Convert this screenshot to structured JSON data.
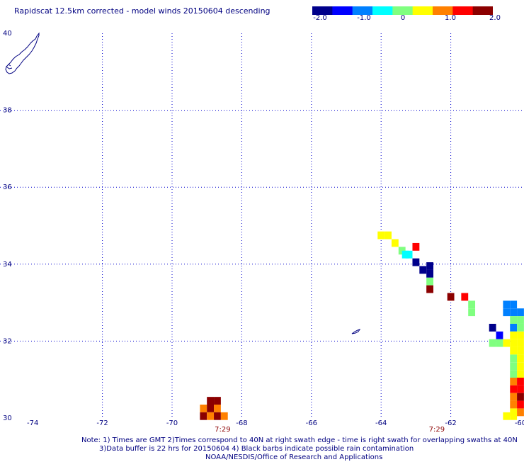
{
  "title": "Rapidscat 12.5km corrected - model winds 20150604 descending",
  "colorbar": {
    "colors": [
      "#00008b",
      "#0000ff",
      "#0080ff",
      "#00ffff",
      "#80ff80",
      "#ffff00",
      "#ff8000",
      "#ff0000",
      "#8b0000"
    ],
    "ticks": [
      "-2.0",
      "-1.0",
      "0",
      "1.0",
      "2.0"
    ]
  },
  "map": {
    "lon_range": [
      -74,
      -60
    ],
    "lat_range": [
      30,
      40
    ],
    "lon_labels": [
      "-74",
      "-72",
      "-70",
      "-68",
      "-66",
      "-64",
      "-62",
      "-60"
    ],
    "lat_labels": [
      "40",
      "38",
      "36",
      "34",
      "32",
      "30"
    ],
    "grid": true,
    "grid_color": "#0000cd",
    "coast_color": "#000080"
  },
  "time_labels": [
    {
      "text": "7:29",
      "lon": -68.55
    },
    {
      "text": "7:29",
      "lon": -62.4
    }
  ],
  "chart_data": {
    "type": "heatmap",
    "variable": "wind speed difference (scatterometer - model)",
    "cell_size_deg": 0.2,
    "value_range": [
      -2.0,
      2.0
    ],
    "cells": [
      [
        -68.9,
        30.45,
        1.6
      ],
      [
        -68.7,
        30.45,
        1.6
      ],
      [
        -69.1,
        30.25,
        1.1
      ],
      [
        -68.9,
        30.25,
        1.6
      ],
      [
        -68.7,
        30.25,
        1.1
      ],
      [
        -69.1,
        30.05,
        1.6
      ],
      [
        -68.9,
        30.05,
        1.1
      ],
      [
        -68.7,
        30.05,
        1.6
      ],
      [
        -68.5,
        30.05,
        1.1
      ],
      [
        -64.0,
        34.75,
        0.6
      ],
      [
        -63.8,
        34.75,
        0.5
      ],
      [
        -63.6,
        34.55,
        0.3
      ],
      [
        -63.4,
        34.35,
        0.0
      ],
      [
        -63.0,
        34.45,
        1.2
      ],
      [
        -63.3,
        34.25,
        -0.4
      ],
      [
        -63.2,
        34.25,
        -0.4
      ],
      [
        -63.0,
        34.05,
        -1.8
      ],
      [
        -62.8,
        33.85,
        -1.8
      ],
      [
        -62.6,
        33.95,
        -1.8
      ],
      [
        -62.6,
        33.75,
        -1.9
      ],
      [
        -62.6,
        33.55,
        -0.1
      ],
      [
        -62.6,
        33.35,
        2.0
      ],
      [
        -62.0,
        33.15,
        2.0
      ],
      [
        -61.6,
        33.15,
        1.2
      ],
      [
        -61.4,
        32.95,
        0.1
      ],
      [
        -61.4,
        32.75,
        0.0
      ],
      [
        -60.8,
        32.35,
        -1.9
      ],
      [
        -60.6,
        32.15,
        -1.3
      ],
      [
        -60.4,
        32.95,
        -0.9
      ],
      [
        -60.2,
        32.95,
        -0.9
      ],
      [
        -60.4,
        32.75,
        -1.0
      ],
      [
        -60.2,
        32.75,
        -0.7
      ],
      [
        -60.0,
        32.75,
        -1.0
      ],
      [
        -60.2,
        32.55,
        0.2
      ],
      [
        -60.0,
        32.55,
        0.0
      ],
      [
        -60.2,
        32.35,
        -0.8
      ],
      [
        -60.0,
        32.35,
        0.2
      ],
      [
        -60.2,
        32.15,
        0.4
      ],
      [
        -60.0,
        32.15,
        0.3
      ],
      [
        -60.8,
        31.95,
        -0.2
      ],
      [
        -60.6,
        31.95,
        0.0
      ],
      [
        -60.4,
        31.95,
        0.3
      ],
      [
        -60.2,
        31.95,
        0.5
      ],
      [
        -60.0,
        31.95,
        0.5
      ],
      [
        -60.2,
        31.75,
        0.3
      ],
      [
        -60.0,
        31.75,
        0.5
      ],
      [
        -60.2,
        31.55,
        0.2
      ],
      [
        -60.0,
        31.55,
        0.5
      ],
      [
        -60.2,
        31.35,
        0.0
      ],
      [
        -60.0,
        31.35,
        0.5
      ],
      [
        -60.2,
        31.15,
        0.1
      ],
      [
        -60.0,
        31.15,
        0.6
      ],
      [
        -60.2,
        30.95,
        0.8
      ],
      [
        -60.0,
        30.95,
        1.2
      ],
      [
        -60.2,
        30.75,
        1.2
      ],
      [
        -60.0,
        30.75,
        1.5
      ],
      [
        -60.2,
        30.55,
        1.0
      ],
      [
        -60.0,
        30.55,
        1.6
      ],
      [
        -60.2,
        30.35,
        0.8
      ],
      [
        -60.0,
        30.35,
        1.3
      ],
      [
        -60.2,
        30.15,
        0.4
      ],
      [
        -60.0,
        30.15,
        1.0
      ],
      [
        -60.4,
        30.05,
        0.3
      ],
      [
        -60.2,
        30.05,
        0.5
      ]
    ]
  },
  "notes": [
    "Note: 1) Times are GMT 2)Times correspond to 40N at right swath edge - time is right swath for overlapping swaths at 40N",
    "3)Data buffer is 22 hrs for 20150604 4) Black barbs indicate possible rain contamination",
    "NOAA/NESDIS/Office of Research and Applications"
  ]
}
